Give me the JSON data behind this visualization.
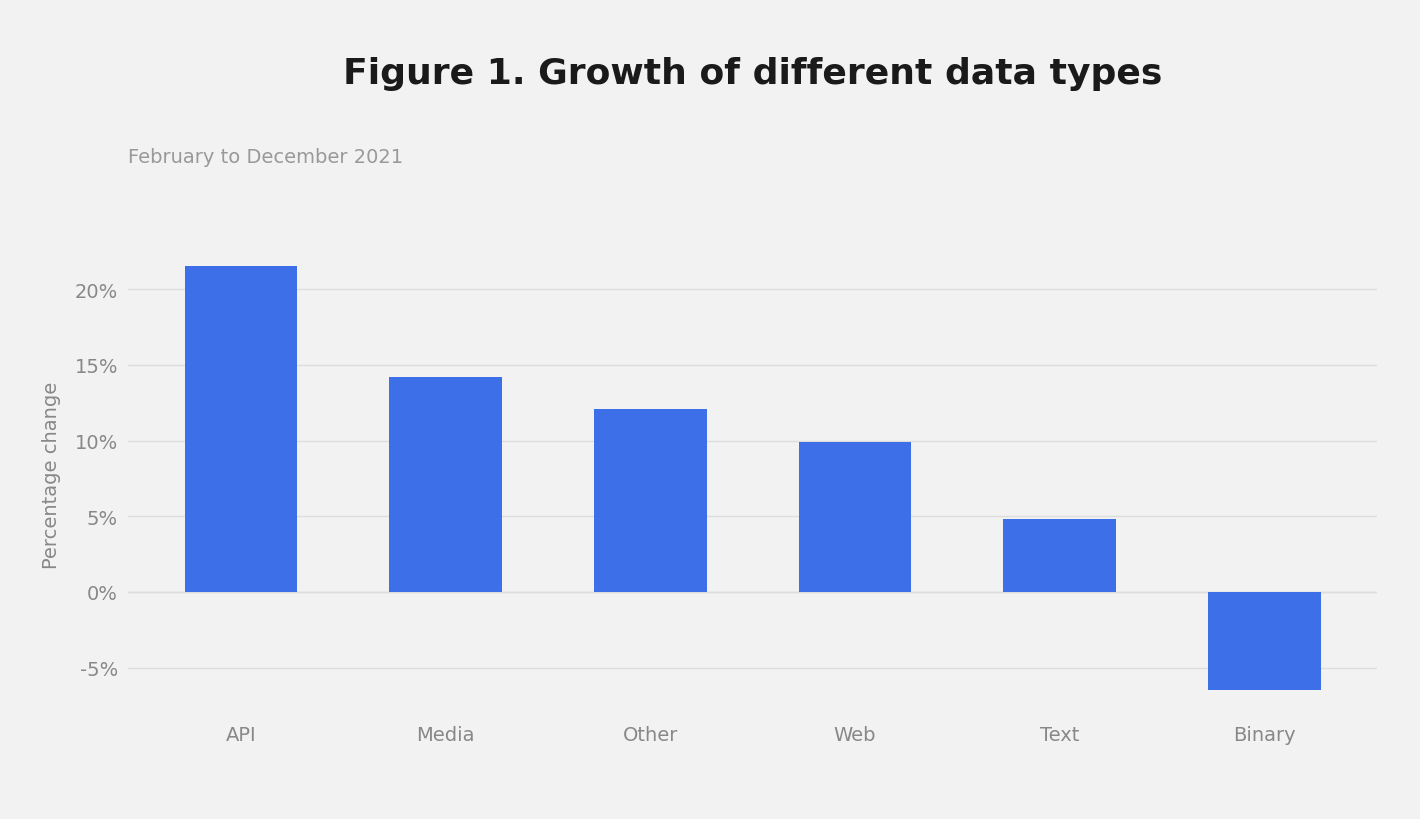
{
  "title": "Figure 1. Growth of different data types",
  "subtitle": "February to December 2021",
  "categories": [
    "API",
    "Media",
    "Other",
    "Web",
    "Text",
    "Binary"
  ],
  "values": [
    21.5,
    14.2,
    12.1,
    9.9,
    4.8,
    -6.5
  ],
  "bar_color": "#3D6FE8",
  "background_color": "#f2f2f2",
  "ylabel": "Percentage change",
  "yticks": [
    -5,
    0,
    5,
    10,
    15,
    20
  ],
  "ylim": [
    -8.5,
    24
  ],
  "title_fontsize": 26,
  "subtitle_fontsize": 14,
  "ylabel_fontsize": 14,
  "tick_fontsize": 14,
  "grid_color": "#dddddd",
  "tick_color": "#888888",
  "title_color": "#1a1a1a",
  "subtitle_color": "#999999"
}
